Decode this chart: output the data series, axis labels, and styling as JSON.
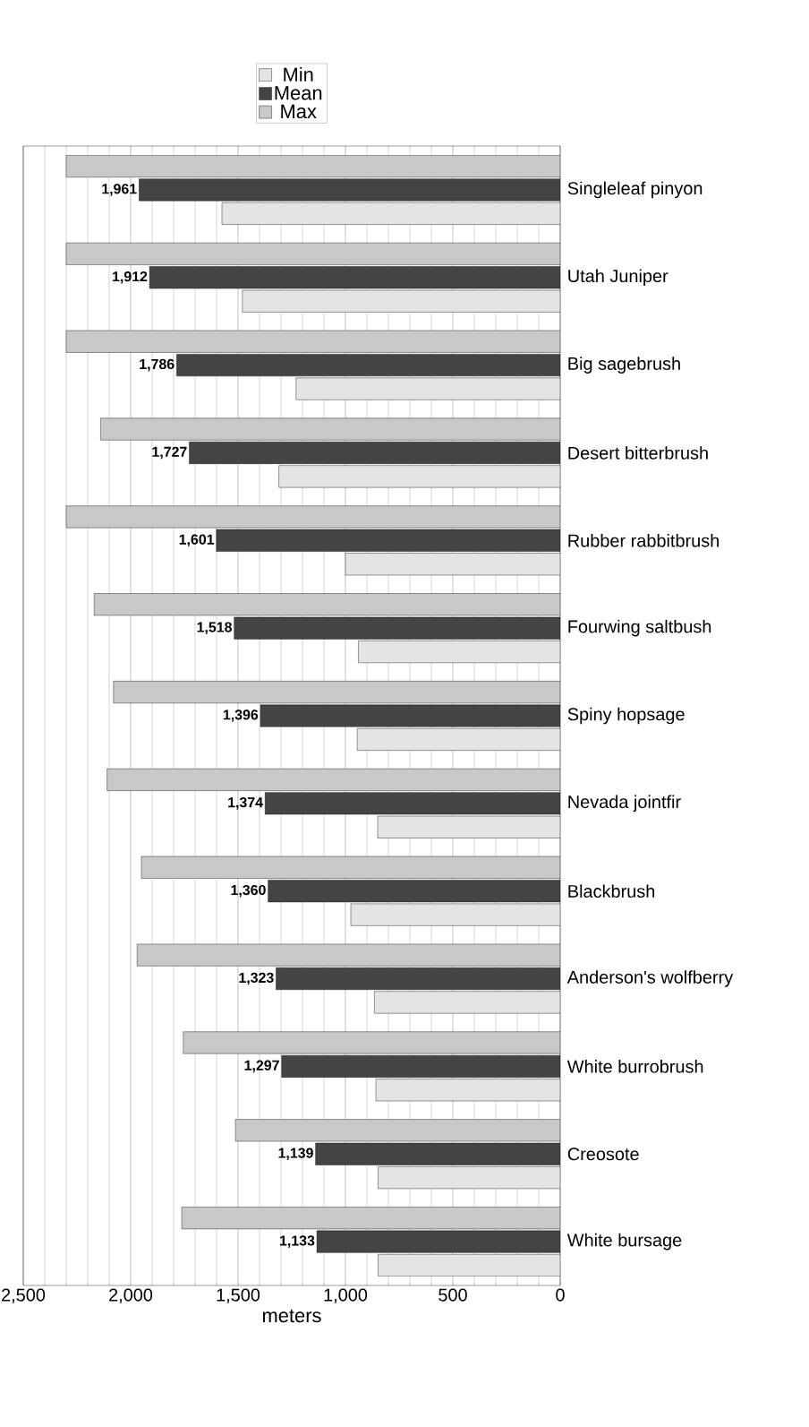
{
  "chart_data": {
    "type": "bar",
    "orientation": "horizontal",
    "xlabel": "meters",
    "categories": [
      "Singleleaf pinyon",
      "Utah Juniper",
      "Big sagebrush",
      "Desert bitterbrush",
      "Rubber rabbitbrush",
      "Fourwing saltbush",
      "Spiny hopsage",
      "Nevada jointfir",
      "Blackbrush",
      "Anderson's wolfberry",
      "White burrobrush",
      "Creosote",
      "White bursage"
    ],
    "series": [
      {
        "name": "Min",
        "color": "#e4e4e4",
        "values": [
          1575,
          1480,
          1230,
          1310,
          1000,
          940,
          945,
          850,
          975,
          865,
          858,
          848,
          848
        ]
      },
      {
        "name": "Mean",
        "color": "#444444",
        "values": [
          1961,
          1912,
          1786,
          1727,
          1601,
          1518,
          1396,
          1374,
          1360,
          1323,
          1297,
          1139,
          1133
        ],
        "value_labels": [
          "1,961",
          "1,912",
          "1,786",
          "1,727",
          "1,601",
          "1,518",
          "1,396",
          "1,374",
          "1,360",
          "1,323",
          "1,297",
          "1,139",
          "1,133"
        ]
      },
      {
        "name": "Max",
        "color": "#c8c8c8",
        "values": [
          2300,
          2300,
          2300,
          2140,
          2300,
          2170,
          2080,
          2110,
          1950,
          1970,
          1755,
          1512,
          1762
        ]
      }
    ],
    "xlim": [
      2500,
      0
    ],
    "xticks": [
      {
        "value": 0,
        "label": "0"
      },
      {
        "value": 500,
        "label": "500"
      },
      {
        "value": 1000,
        "label": "1,000"
      },
      {
        "value": 1500,
        "label": "1,500"
      },
      {
        "value": 2000,
        "label": "2,000"
      },
      {
        "value": 2500,
        "label": "2,500"
      }
    ],
    "grid": "x",
    "legend": "top"
  }
}
